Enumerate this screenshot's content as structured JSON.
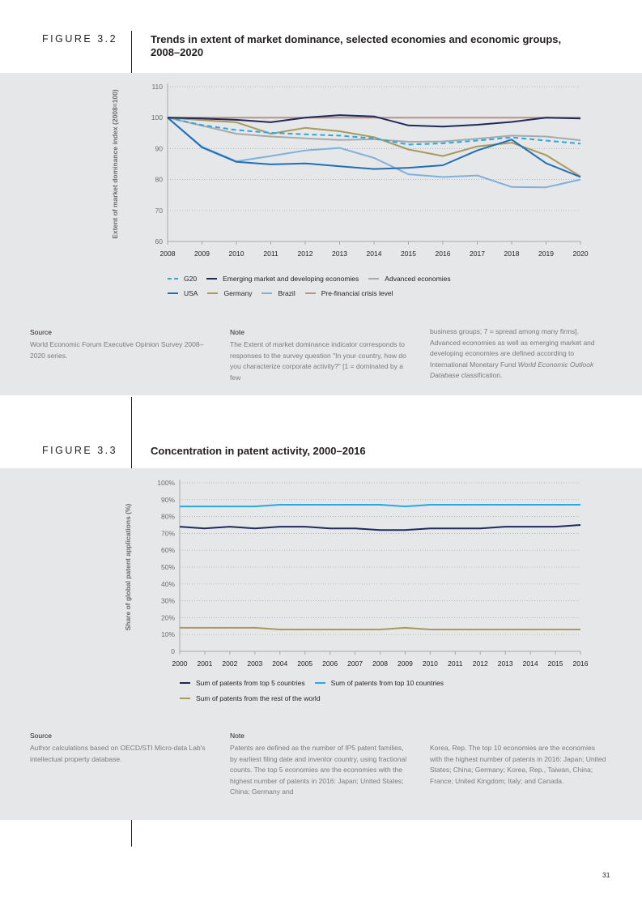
{
  "figure32": {
    "label": "FIGURE 3.2",
    "title": "Trends in extent of market dominance, selected economies and economic groups, 2008–2020",
    "source_head": "Source",
    "source_text": "World Economic Forum Executive Opinion Survey 2008–2020 series.",
    "note_head": "Note",
    "note_text_1": "The Extent of market dominance indicator corresponds to responses to the survey question \"In your country, how do you characterize corporate activity?\" [1 = dominated by a few",
    "note_text_2a": "business groups; 7 = spread among many firms]. Advanced economies as well as emerging market and developing economies are defined according to International Monetary Fund ",
    "note_text_2b": "World Economic Outlook Database",
    "note_text_2c": " classification."
  },
  "figure33": {
    "label": "FIGURE 3.3",
    "title": "Concentration in patent activity, 2000–2016",
    "source_head": "Source",
    "source_text": "Author calculations based on OECD/STI Micro-data Lab's intellectual property database.",
    "note_head": "Note",
    "note_text_1": "Patents are defined as the number of IP5 patent families, by earliest filing date and inventor country, using fractional counts. The top 5 economies are the economies with the highest number of patents in 2016: Japan; United States; China; Germany and",
    "note_text_2": "Korea, Rep. The top 10 economies are the economies with the highest number of patents in 2016: Japan; United States; China; Germany; Korea, Rep., Taiwan, China; France; United Kingdom; Italy; and Canada."
  },
  "page_number": "31",
  "chart_data": [
    {
      "type": "line",
      "title": "Trends in extent of market dominance, selected economies and economic groups, 2008–2020",
      "xlabel": "",
      "ylabel": "Extent of market dominance index (2008=100)",
      "ylim": [
        60,
        110
      ],
      "yticks": [
        "60",
        "70",
        "80",
        "90",
        "100",
        "110"
      ],
      "x": [
        "2008",
        "2009",
        "2010",
        "2011",
        "2012",
        "2013",
        "2014",
        "2015",
        "2016",
        "2017",
        "2018",
        "2019",
        "2020"
      ],
      "grid": true,
      "legend_position": "bottom",
      "series": [
        {
          "name": "Pre-financial crisis level",
          "color": "#b99189",
          "dash": false,
          "values": [
            100,
            100,
            100,
            100,
            100,
            100,
            100,
            100,
            100,
            100,
            100,
            100,
            100
          ]
        },
        {
          "name": "Advanced economies",
          "color": "#a7a9ac",
          "dash": false,
          "values": [
            100,
            97.4,
            94.8,
            93.9,
            93.3,
            92.8,
            93.0,
            92.2,
            92.3,
            93.2,
            94.2,
            93.9,
            92.7
          ]
        },
        {
          "name": "Brazil",
          "color": "#7eb0dc",
          "dash": false,
          "values": [
            100,
            90.6,
            85.9,
            87.6,
            89.4,
            90.2,
            87.0,
            81.7,
            80.8,
            81.3,
            77.6,
            77.5,
            80.0
          ]
        },
        {
          "name": "Germany",
          "color": "#a89a5c",
          "dash": false,
          "values": [
            100,
            99.2,
            98.5,
            94.8,
            96.7,
            95.6,
            93.7,
            89.7,
            87.6,
            90.7,
            91.9,
            87.9,
            81.0
          ]
        },
        {
          "name": "USA",
          "color": "#1f6fb8",
          "dash": false,
          "values": [
            100,
            90.4,
            85.7,
            84.9,
            85.2,
            84.3,
            83.4,
            83.8,
            84.6,
            89.4,
            92.9,
            85.3,
            80.8
          ]
        },
        {
          "name": "G20",
          "color": "#2aa8e0",
          "dash": true,
          "values": [
            100,
            97.6,
            96.0,
            95.1,
            94.6,
            94.2,
            93.3,
            91.3,
            91.7,
            92.6,
            93.6,
            92.6,
            91.6
          ]
        },
        {
          "name": "Emerging market and developing economies",
          "color": "#1f2a5c",
          "dash": false,
          "values": [
            100,
            99.7,
            99.3,
            98.5,
            100,
            100.8,
            100.4,
            97.5,
            97.1,
            97.7,
            98.6,
            100,
            99.7
          ]
        }
      ],
      "legend_rows": [
        [
          5,
          6,
          1
        ],
        [
          4,
          3,
          2,
          0
        ]
      ]
    },
    {
      "type": "line",
      "title": "Concentration in patent activity, 2000–2016",
      "xlabel": "",
      "ylabel": "Share of global patent applications (%)",
      "ylim": [
        0,
        100
      ],
      "yticks": [
        "0",
        "10%",
        "20%",
        "30%",
        "40%",
        "50%",
        "60%",
        "70%",
        "80%",
        "90%",
        "100%"
      ],
      "x": [
        "2000",
        "2001",
        "2002",
        "2003",
        "2004",
        "2005",
        "2006",
        "2007",
        "2008",
        "2009",
        "2010",
        "2011",
        "2012",
        "2013",
        "2014",
        "2015",
        "2016"
      ],
      "grid": true,
      "legend_position": "bottom",
      "series": [
        {
          "name": "Sum of patents from top 5 countries",
          "color": "#1f2a5c",
          "dash": false,
          "values": [
            74,
            73,
            74,
            73,
            74,
            74,
            73,
            73,
            72,
            72,
            73,
            73,
            73,
            74,
            74,
            74,
            75
          ]
        },
        {
          "name": "Sum of patents from top 10 countries",
          "color": "#29a9e0",
          "dash": false,
          "values": [
            86,
            86,
            86,
            86,
            87,
            87,
            87,
            87,
            87,
            86,
            87,
            87,
            87,
            87,
            87,
            87,
            87
          ]
        },
        {
          "name": "Sum of patents from the rest of the world",
          "color": "#a89a5c",
          "dash": false,
          "values": [
            14,
            14,
            14,
            14,
            13,
            13,
            13,
            13,
            13,
            14,
            13,
            13,
            13,
            13,
            13,
            13,
            13
          ]
        }
      ],
      "legend_rows": [
        [
          0,
          1
        ],
        [
          2
        ]
      ]
    }
  ]
}
